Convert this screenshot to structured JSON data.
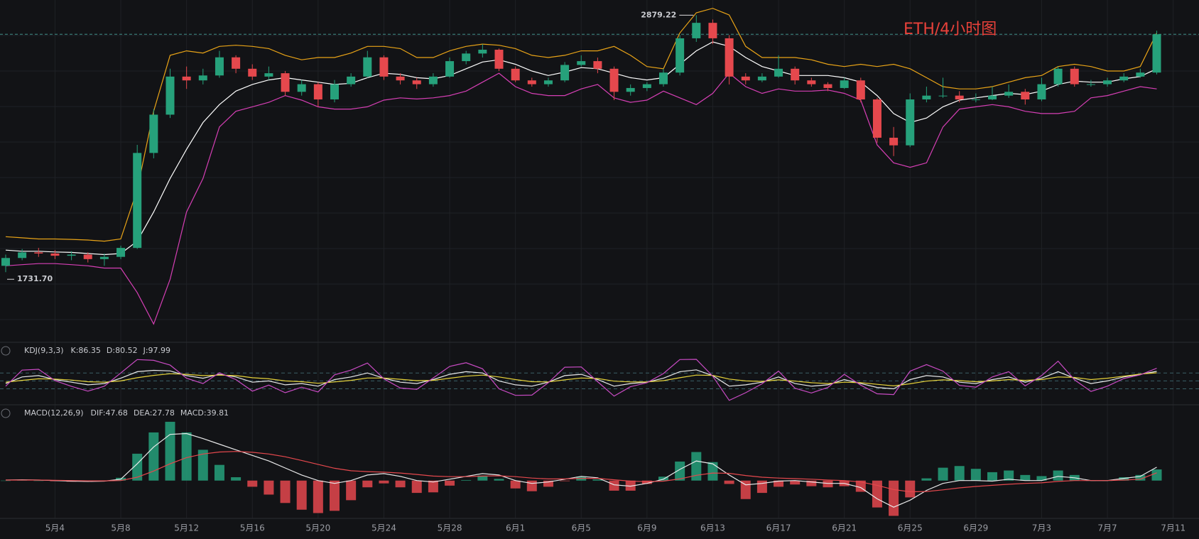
{
  "chart_data": [
    {
      "type": "candlestick",
      "title": "ETH/4小时图",
      "categories": [
        null,
        null,
        null,
        "5月4",
        null,
        null,
        null,
        "5月8",
        null,
        null,
        null,
        "5月12",
        null,
        null,
        null,
        "5月16",
        null,
        null,
        null,
        "5月20",
        null,
        null,
        null,
        "5月24",
        null,
        null,
        null,
        "5月28",
        null,
        null,
        null,
        "6月1",
        null,
        null,
        null,
        "6月5",
        null,
        null,
        null,
        "6月9",
        null,
        null,
        null,
        "6月13",
        null,
        null,
        null,
        "6月17",
        null,
        null,
        null,
        "6月21",
        null,
        null,
        null,
        "6月25",
        null,
        null,
        null,
        "6月29",
        null,
        null,
        null,
        "7月3",
        null,
        null,
        null,
        "7月7",
        null,
        null,
        null,
        "7月11"
      ],
      "open": [
        1760,
        1795,
        1820,
        1815,
        1805,
        1810,
        1790,
        1800,
        1840,
        2264,
        2435,
        2605,
        2588,
        2610,
        2691,
        2640,
        2605,
        2620,
        2537,
        2571,
        2503,
        2571,
        2605,
        2691,
        2605,
        2588,
        2571,
        2605,
        2674,
        2708,
        2725,
        2640,
        2588,
        2571,
        2588,
        2657,
        2674,
        2640,
        2537,
        2554,
        2571,
        2623,
        2776,
        2845,
        2776,
        2605,
        2588,
        2605,
        2640,
        2588,
        2571,
        2554,
        2588,
        2503,
        2332,
        2298,
        2503,
        2520,
        2520,
        2503,
        2503,
        2520,
        2537,
        2503,
        2571,
        2640,
        2571,
        2571,
        2588,
        2605,
        2623,
        null
      ],
      "high": [
        1810,
        1835,
        1840,
        1830,
        1825,
        1820,
        1815,
        1850,
        2300,
        2460,
        2640,
        2650,
        2640,
        2720,
        2700,
        2660,
        2650,
        2630,
        2590,
        2580,
        2590,
        2620,
        2720,
        2700,
        2620,
        2600,
        2620,
        2690,
        2720,
        2750,
        2730,
        2650,
        2600,
        2600,
        2670,
        2700,
        2690,
        2650,
        2570,
        2580,
        2640,
        2790,
        2879.22,
        2860,
        2790,
        2620,
        2620,
        2700,
        2650,
        2600,
        2580,
        2600,
        2600,
        2510,
        2380,
        2530,
        2560,
        2600,
        2540,
        2530,
        2560,
        2570,
        2550,
        2600,
        2650,
        2650,
        2590,
        2600,
        2620,
        2640,
        2810,
        null
      ],
      "low": [
        1731.7,
        1785,
        1800,
        1790,
        1785,
        1775,
        1760,
        1790,
        1835,
        2240,
        2420,
        2550,
        2570,
        2600,
        2620,
        2590,
        2590,
        2520,
        2520,
        2470,
        2490,
        2560,
        2600,
        2590,
        2570,
        2550,
        2560,
        2600,
        2660,
        2690,
        2630,
        2580,
        2560,
        2560,
        2580,
        2650,
        2620,
        2500,
        2520,
        2540,
        2560,
        2610,
        2760,
        2750,
        2570,
        2570,
        2580,
        2600,
        2570,
        2560,
        2540,
        2550,
        2490,
        2310,
        2250,
        2290,
        2490,
        2510,
        2490,
        2490,
        2500,
        2510,
        2480,
        2495,
        2560,
        2560,
        2560,
        2560,
        2580,
        2600,
        2615,
        null
      ],
      "close": [
        1795,
        1820,
        1815,
        1805,
        1810,
        1790,
        1800,
        1840,
        2264,
        2435,
        2605,
        2588,
        2610,
        2691,
        2640,
        2605,
        2620,
        2537,
        2571,
        2503,
        2571,
        2605,
        2691,
        2605,
        2588,
        2571,
        2605,
        2674,
        2708,
        2725,
        2640,
        2588,
        2571,
        2588,
        2657,
        2674,
        2640,
        2537,
        2554,
        2571,
        2623,
        2776,
        2845,
        2776,
        2605,
        2588,
        2605,
        2640,
        2588,
        2571,
        2554,
        2588,
        2503,
        2332,
        2298,
        2503,
        2520,
        2520,
        2503,
        2503,
        2520,
        2537,
        2503,
        2571,
        2640,
        2571,
        2571,
        2588,
        2605,
        2623,
        2794,
        null
      ],
      "up_color": "#26a17b",
      "down_color": "#e5484d",
      "series": [
        {
          "color": "#e8a317",
          "values": [
            1890,
            1885,
            1880,
            1880,
            1878,
            1875,
            1870,
            1880,
            2100,
            2450,
            2700,
            2720,
            2710,
            2740,
            2745,
            2740,
            2730,
            2700,
            2680,
            2690,
            2690,
            2710,
            2740,
            2740,
            2730,
            2690,
            2690,
            2720,
            2740,
            2750,
            2745,
            2730,
            2700,
            2690,
            2700,
            2720,
            2720,
            2740,
            2700,
            2650,
            2640,
            2800,
            2890,
            2910,
            2880,
            2740,
            2690,
            2690,
            2690,
            2680,
            2660,
            2650,
            2660,
            2650,
            2660,
            2640,
            2600,
            2560,
            2550,
            2550,
            2560,
            2580,
            2600,
            2610,
            2650,
            2660,
            2650,
            2630,
            2630,
            2650,
            2800,
            null
          ]
        },
        {
          "color": "#ffffff",
          "values": [
            1830,
            1825,
            1825,
            1822,
            1820,
            1815,
            1810,
            1815,
            1870,
            2000,
            2150,
            2280,
            2400,
            2480,
            2540,
            2570,
            2590,
            2600,
            2590,
            2580,
            2570,
            2575,
            2600,
            2620,
            2615,
            2600,
            2595,
            2610,
            2640,
            2670,
            2680,
            2660,
            2630,
            2610,
            2625,
            2645,
            2640,
            2620,
            2600,
            2590,
            2600,
            2660,
            2720,
            2760,
            2740,
            2690,
            2650,
            2630,
            2610,
            2610,
            2610,
            2600,
            2580,
            2520,
            2440,
            2400,
            2420,
            2470,
            2500,
            2510,
            2520,
            2530,
            2525,
            2540,
            2570,
            2585,
            2580,
            2580,
            2595,
            2605,
            2640,
            null
          ]
        },
        {
          "color": "#d63fb5",
          "values": [
            1760,
            1765,
            1770,
            1770,
            1765,
            1760,
            1750,
            1750,
            1640,
            1500,
            1700,
            2000,
            2150,
            2380,
            2450,
            2470,
            2490,
            2520,
            2500,
            2470,
            2460,
            2460,
            2470,
            2500,
            2510,
            2505,
            2510,
            2520,
            2540,
            2580,
            2620,
            2560,
            2530,
            2520,
            2520,
            2550,
            2570,
            2510,
            2490,
            2500,
            2540,
            2510,
            2480,
            2530,
            2620,
            2560,
            2530,
            2550,
            2540,
            2540,
            2545,
            2530,
            2500,
            2300,
            2220,
            2200,
            2220,
            2380,
            2460,
            2470,
            2480,
            2470,
            2450,
            2440,
            2440,
            2450,
            2510,
            2520,
            2540,
            2560,
            2550,
            null
          ]
        }
      ],
      "annotations": [
        2879.22,
        {
          "value": 1731.7,
          "label": "1731.70"
        }
      ],
      "price_line": 2794,
      "price_line_color": "#3f8f88",
      "ylim": [
        1428,
        2947
      ],
      "grid": true
    },
    {
      "type": "line",
      "title": "KDJ(9,3,3)",
      "ylim": [
        -30,
        140
      ],
      "levels": [
        20,
        50,
        80
      ],
      "series": [
        {
          "name": "K:86.35",
          "color": "#e9e9ea",
          "values": [
            40,
            65,
            70,
            55,
            45,
            35,
            40,
            60,
            85,
            90,
            88,
            70,
            60,
            75,
            65,
            45,
            50,
            35,
            40,
            30,
            55,
            65,
            80,
            60,
            45,
            40,
            55,
            75,
            85,
            80,
            50,
            35,
            30,
            45,
            70,
            75,
            55,
            30,
            40,
            45,
            60,
            85,
            92,
            70,
            30,
            35,
            45,
            65,
            40,
            30,
            35,
            55,
            40,
            25,
            20,
            55,
            70,
            65,
            45,
            40,
            55,
            65,
            45,
            60,
            85,
            60,
            40,
            50,
            65,
            75,
            86.35,
            null
          ]
        },
        {
          "name": "D:80.52",
          "color": "#e6d23a",
          "values": [
            45,
            52,
            58,
            57,
            53,
            47,
            45,
            50,
            62,
            71,
            77,
            75,
            70,
            72,
            70,
            62,
            58,
            50,
            47,
            41,
            46,
            52,
            61,
            61,
            56,
            51,
            52,
            60,
            68,
            72,
            65,
            55,
            47,
            46,
            54,
            61,
            59,
            49,
            46,
            46,
            51,
            62,
            72,
            71,
            57,
            50,
            48,
            54,
            49,
            43,
            40,
            45,
            43,
            37,
            31,
            39,
            49,
            54,
            51,
            47,
            50,
            55,
            52,
            55,
            65,
            63,
            55,
            60,
            68,
            76,
            80.52,
            null
          ]
        },
        {
          "name": "J:97.99",
          "color": "#c94bc4",
          "values": [
            30,
            91,
            94,
            51,
            29,
            11,
            30,
            80,
            131,
            128,
            110,
            60,
            40,
            81,
            55,
            11,
            34,
            5,
            26,
            8,
            73,
            91,
            118,
            58,
            23,
            18,
            61,
            105,
            119,
            96,
            20,
            -5,
            -4,
            43,
            102,
            103,
            47,
            -8,
            28,
            43,
            78,
            131,
            132,
            68,
            -24,
            5,
            39,
            87,
            22,
            4,
            25,
            75,
            34,
            1,
            -2,
            87,
            112,
            87,
            33,
            26,
            65,
            85,
            31,
            70,
            125,
            54,
            10,
            30,
            59,
            73,
            97.99,
            null
          ]
        }
      ]
    },
    {
      "type": "macd",
      "title": "MACD(12,26,9)",
      "ylim": [
        -130,
        220
      ],
      "series": [
        {
          "name": "DIF:47.68",
          "color": "#e9e9ea",
          "values": [
            2,
            3,
            2,
            0,
            -2,
            -3,
            -2,
            5,
            60,
            120,
            165,
            168,
            150,
            130,
            110,
            90,
            70,
            45,
            20,
            0,
            -10,
            0,
            20,
            25,
            15,
            0,
            -5,
            5,
            15,
            25,
            20,
            0,
            -10,
            -5,
            5,
            15,
            10,
            -15,
            -20,
            -10,
            5,
            40,
            70,
            60,
            20,
            -15,
            -10,
            -2,
            0,
            -5,
            -10,
            -10,
            -25,
            -65,
            -95,
            -70,
            -35,
            -10,
            0,
            0,
            -2,
            5,
            0,
            0,
            15,
            10,
            0,
            0,
            8,
            15,
            47.68,
            null
          ]
        },
        {
          "name": "DEA:27.78",
          "color": "#e5484d",
          "values": [
            2,
            2,
            2,
            1,
            0,
            -1,
            -1,
            0,
            12,
            34,
            60,
            82,
            95,
            102,
            104,
            101,
            95,
            85,
            72,
            58,
            44,
            35,
            32,
            30,
            27,
            22,
            16,
            14,
            14,
            16,
            17,
            14,
            9,
            6,
            6,
            8,
            8,
            3,
            -2,
            -4,
            -2,
            6,
            19,
            27,
            26,
            18,
            12,
            9,
            7,
            5,
            2,
            0,
            -5,
            -17,
            -32,
            -40,
            -39,
            -33,
            -26,
            -21,
            -17,
            -13,
            -10,
            -8,
            -3,
            0,
            0,
            0,
            2,
            5,
            27.78,
            null
          ]
        }
      ],
      "histogram": {
        "name": "MACD:39.81",
        "up_color": "#26a17b",
        "down_color": "#e5484d",
        "values": [
          0,
          2,
          0,
          -2,
          -4,
          -4,
          -2,
          10,
          96,
          172,
          210,
          172,
          110,
          56,
          12,
          -22,
          -50,
          -80,
          -104,
          -116,
          -108,
          -70,
          -24,
          -10,
          -24,
          -44,
          -42,
          -18,
          2,
          18,
          6,
          -28,
          -38,
          -22,
          -2,
          14,
          4,
          -36,
          -36,
          -12,
          14,
          68,
          102,
          66,
          -12,
          -66,
          -44,
          -22,
          -14,
          -20,
          -24,
          -20,
          -40,
          -96,
          -126,
          -60,
          8,
          46,
          52,
          42,
          30,
          36,
          20,
          16,
          36,
          20,
          0,
          0,
          12,
          20,
          39.81,
          null
        ]
      }
    }
  ]
}
